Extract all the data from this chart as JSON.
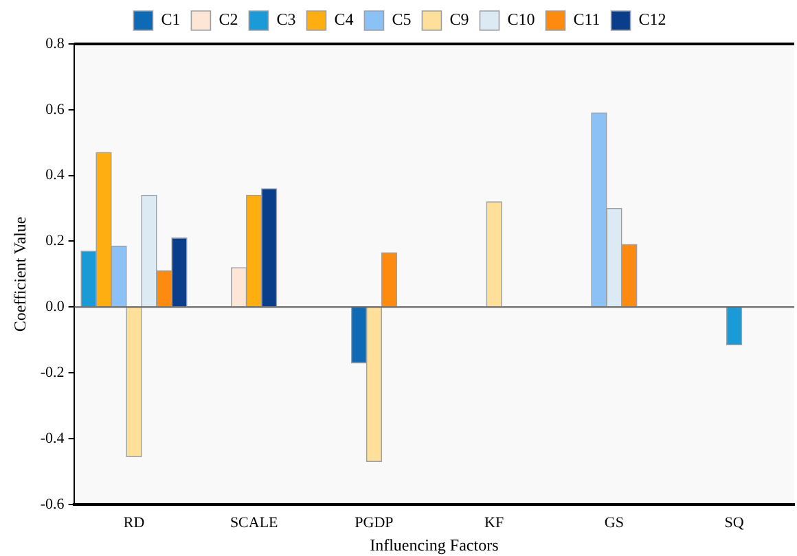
{
  "chart_data": {
    "type": "bar",
    "xlabel": "Influencing Factors",
    "ylabel": "Coefficient Value",
    "categories": [
      "RD",
      "SCALE",
      "PGDP",
      "KF",
      "GS",
      "SQ"
    ],
    "series": [
      {
        "name": "C1",
        "color": "#0e6ab5",
        "values": [
          null,
          null,
          -0.17,
          null,
          null,
          null
        ]
      },
      {
        "name": "C2",
        "color": "#fde6d6",
        "values": [
          null,
          0.12,
          null,
          null,
          null,
          null
        ]
      },
      {
        "name": "C3",
        "color": "#1a9ad6",
        "values": [
          0.17,
          null,
          null,
          null,
          null,
          -0.115
        ]
      },
      {
        "name": "C4",
        "color": "#ffae12",
        "values": [
          0.47,
          0.34,
          null,
          null,
          null,
          null
        ]
      },
      {
        "name": "C5",
        "color": "#8cc1f5",
        "values": [
          0.185,
          null,
          null,
          null,
          0.59,
          null
        ]
      },
      {
        "name": "C9",
        "color": "#ffe09a",
        "values": [
          -0.455,
          null,
          -0.47,
          0.32,
          null,
          null
        ]
      },
      {
        "name": "C10",
        "color": "#dcebf3",
        "values": [
          0.34,
          null,
          null,
          null,
          0.3,
          null
        ]
      },
      {
        "name": "C11",
        "color": "#ff8a10",
        "values": [
          0.11,
          null,
          0.165,
          null,
          0.19,
          null
        ]
      },
      {
        "name": "C12",
        "color": "#0b3e8a",
        "values": [
          0.21,
          0.36,
          null,
          null,
          null,
          null
        ]
      }
    ],
    "ylim": [
      -0.6,
      0.8
    ],
    "yticks": [
      -0.6,
      -0.4,
      -0.2,
      {
        "value": 0,
        "label": "0.0"
      },
      0.2,
      0.4,
      0.6,
      0.8
    ],
    "ref_lines": [
      {
        "axis": "y",
        "value": 0,
        "color": "#555555"
      }
    ],
    "grid": false,
    "legend": "top"
  }
}
